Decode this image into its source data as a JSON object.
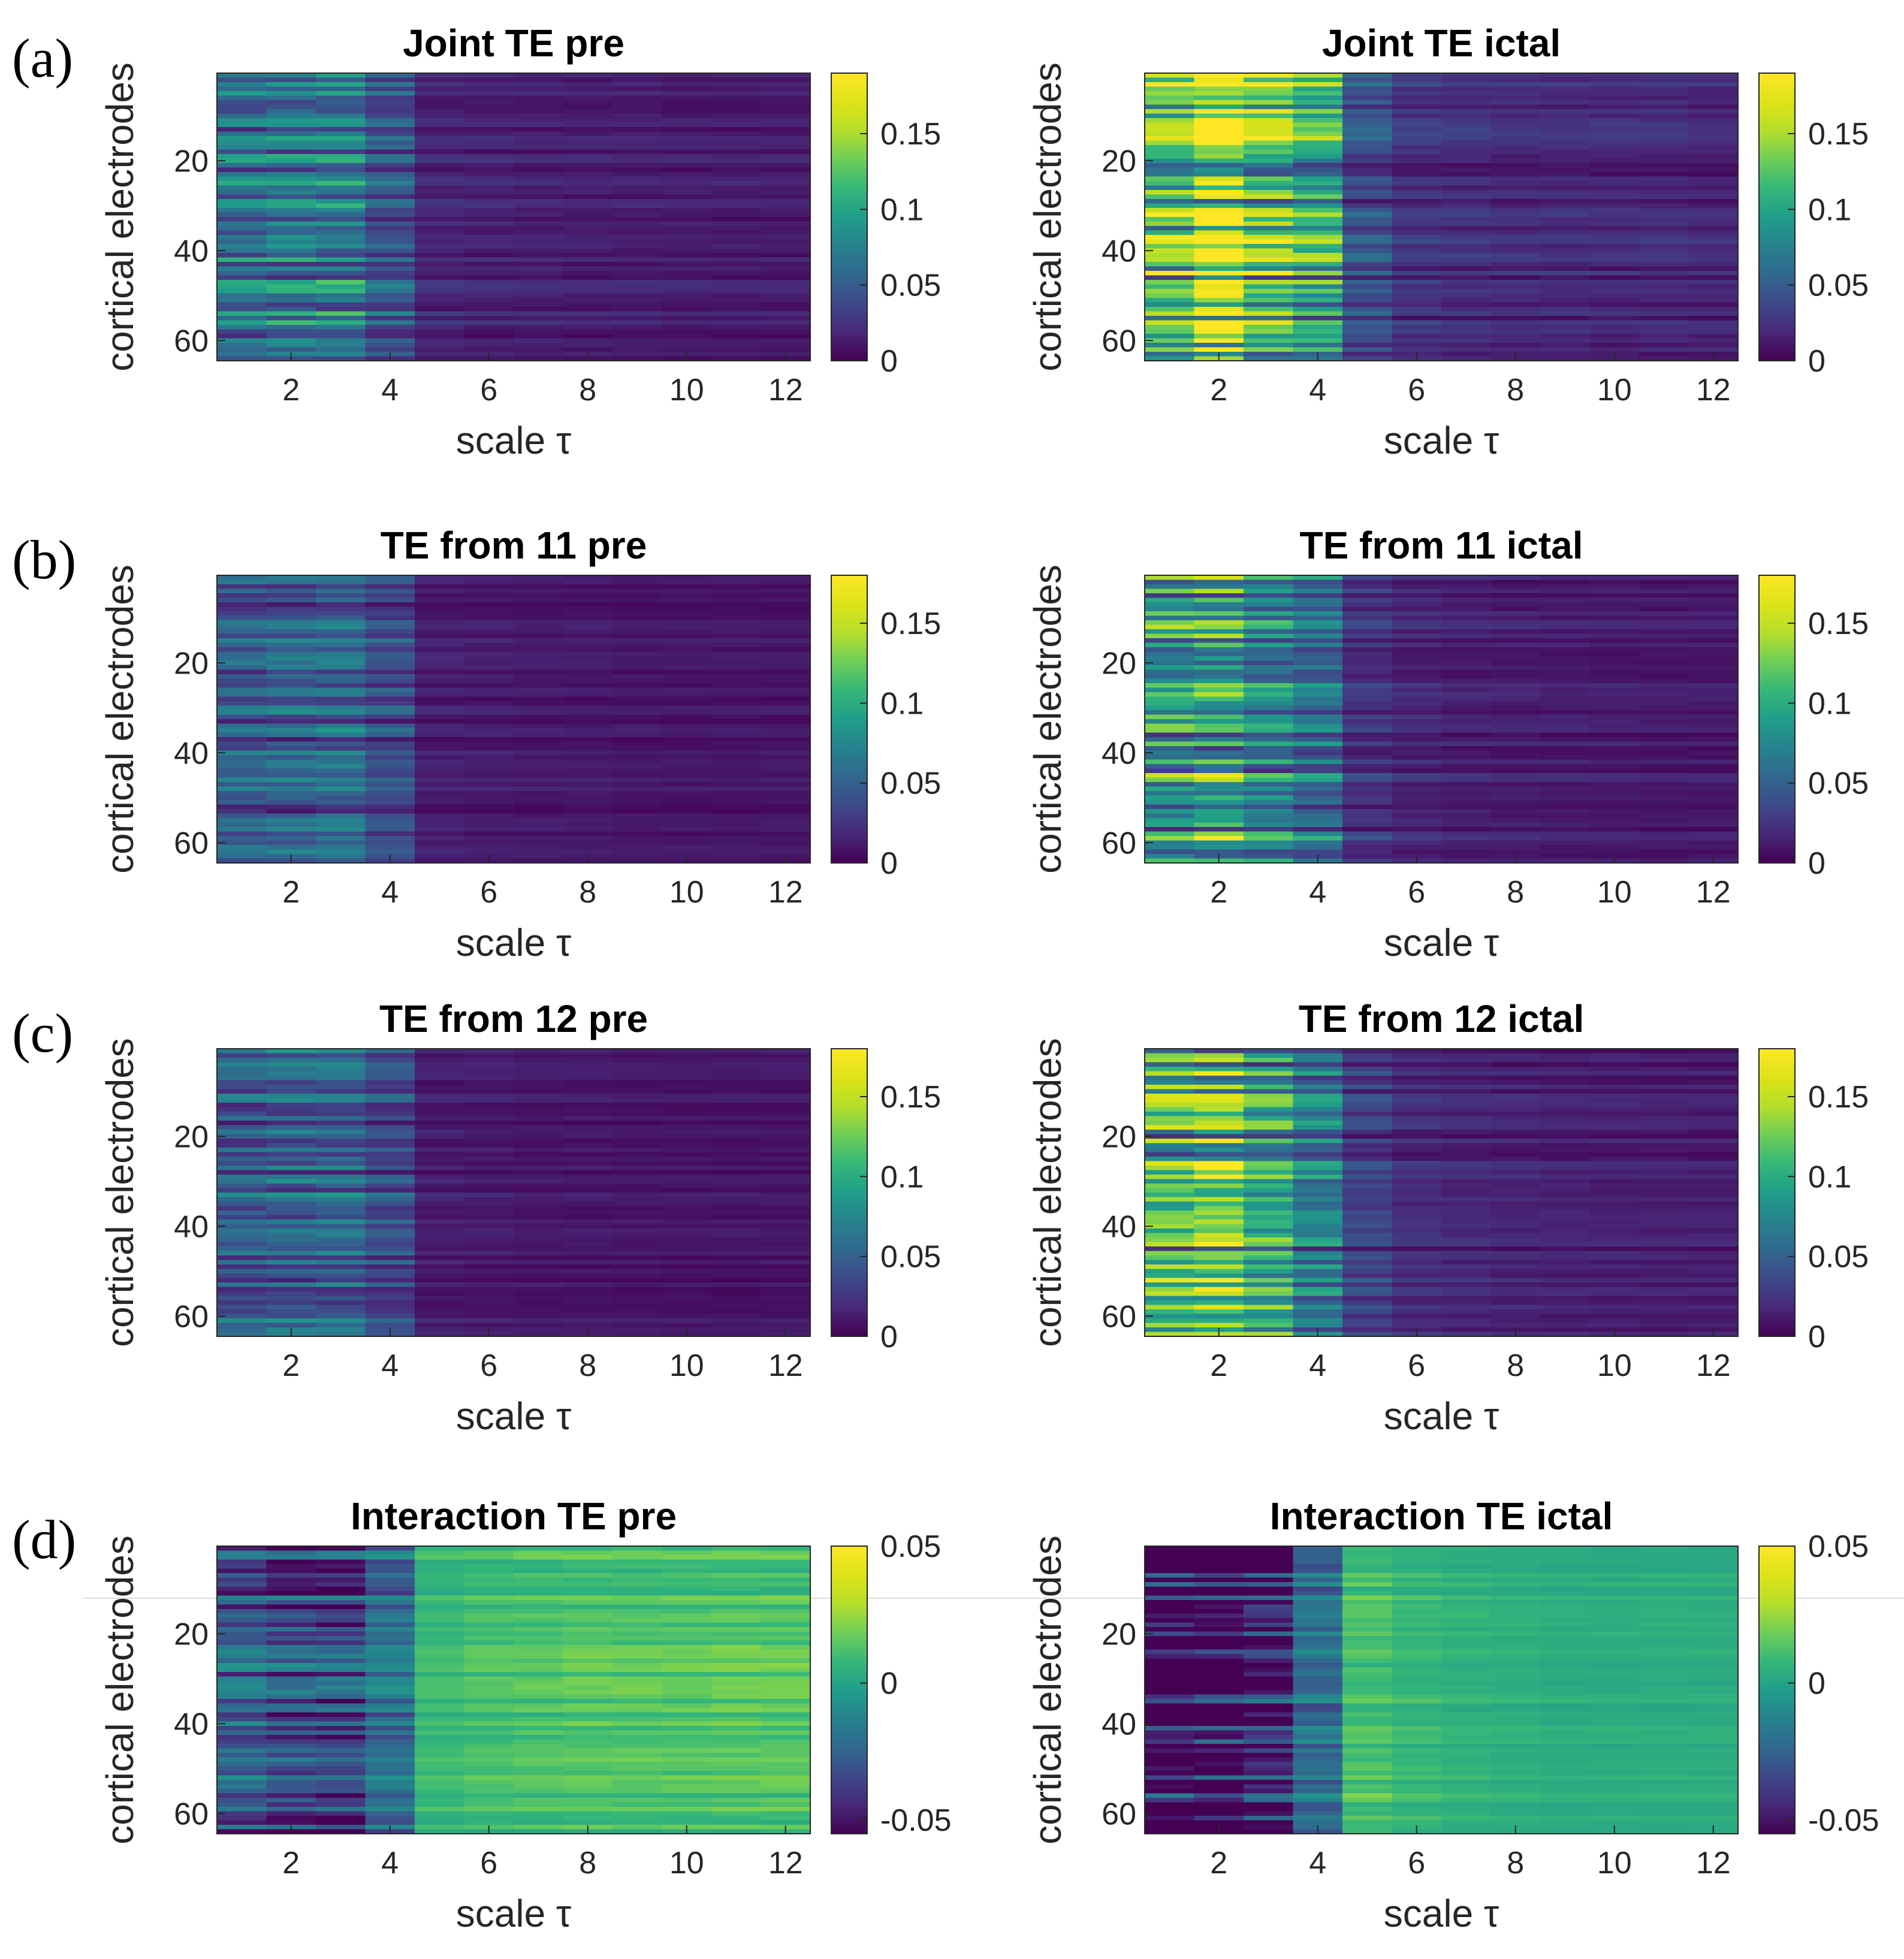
{
  "figure": {
    "row_labels": [
      "(a)",
      "(b)",
      "(c)",
      "(d)"
    ]
  },
  "chart_data": [
    {
      "type": "heatmap",
      "title": "Joint TE pre",
      "xlabel": "scale τ",
      "ylabel": "cortical electrodes",
      "x": [
        1,
        2,
        3,
        4,
        5,
        6,
        7,
        8,
        9,
        10,
        11,
        12
      ],
      "xticks": [
        "2",
        "4",
        "6",
        "8",
        "10",
        "12"
      ],
      "yticks": [
        "20",
        "40",
        "60"
      ],
      "n_electrodes": 64,
      "clim": [
        0,
        0.19
      ],
      "cbar_ticks": [
        "0",
        "0.05",
        "0.1",
        "0.15"
      ],
      "mean_by_scale": [
        0.065,
        0.068,
        0.07,
        0.045,
        0.018,
        0.016,
        0.015,
        0.014,
        0.014,
        0.013,
        0.013,
        0.013
      ]
    },
    {
      "type": "heatmap",
      "title": "Joint TE ictal",
      "xlabel": "scale τ",
      "ylabel": "cortical electrodes",
      "x": [
        1,
        2,
        3,
        4,
        5,
        6,
        7,
        8,
        9,
        10,
        11,
        12
      ],
      "xticks": [
        "2",
        "4",
        "6",
        "8",
        "10",
        "12"
      ],
      "yticks": [
        "20",
        "40",
        "60"
      ],
      "n_electrodes": 64,
      "clim": [
        0,
        0.19
      ],
      "cbar_ticks": [
        "0",
        "0.05",
        "0.1",
        "0.15"
      ],
      "mean_by_scale": [
        0.12,
        0.16,
        0.12,
        0.1,
        0.04,
        0.025,
        0.022,
        0.02,
        0.02,
        0.019,
        0.019,
        0.018
      ]
    },
    {
      "type": "heatmap",
      "title": "TE from 11 pre",
      "xlabel": "scale τ",
      "ylabel": "cortical electrodes",
      "x": [
        1,
        2,
        3,
        4,
        5,
        6,
        7,
        8,
        9,
        10,
        11,
        12
      ],
      "xticks": [
        "2",
        "4",
        "6",
        "8",
        "10",
        "12"
      ],
      "yticks": [
        "20",
        "40",
        "60"
      ],
      "n_electrodes": 64,
      "clim": [
        0,
        0.18
      ],
      "cbar_ticks": [
        "0",
        "0.05",
        "0.1",
        "0.15"
      ],
      "mean_by_scale": [
        0.045,
        0.048,
        0.05,
        0.035,
        0.012,
        0.011,
        0.01,
        0.01,
        0.009,
        0.009,
        0.009,
        0.009
      ]
    },
    {
      "type": "heatmap",
      "title": "TE from 11 ictal",
      "xlabel": "scale τ",
      "ylabel": "cortical electrodes",
      "x": [
        1,
        2,
        3,
        4,
        5,
        6,
        7,
        8,
        9,
        10,
        11,
        12
      ],
      "xticks": [
        "2",
        "4",
        "6",
        "8",
        "10",
        "12"
      ],
      "yticks": [
        "20",
        "40",
        "60"
      ],
      "n_electrodes": 64,
      "clim": [
        0,
        0.18
      ],
      "cbar_ticks": [
        "0",
        "0.05",
        "0.1",
        "0.15"
      ],
      "mean_by_scale": [
        0.09,
        0.1,
        0.08,
        0.06,
        0.025,
        0.018,
        0.015,
        0.014,
        0.013,
        0.013,
        0.012,
        0.012
      ]
    },
    {
      "type": "heatmap",
      "title": "TE from 12 pre",
      "xlabel": "scale τ",
      "ylabel": "cortical electrodes",
      "x": [
        1,
        2,
        3,
        4,
        5,
        6,
        7,
        8,
        9,
        10,
        11,
        12
      ],
      "xticks": [
        "2",
        "4",
        "6",
        "8",
        "10",
        "12"
      ],
      "yticks": [
        "20",
        "40",
        "60"
      ],
      "n_electrodes": 64,
      "clim": [
        0,
        0.18
      ],
      "cbar_ticks": [
        "0",
        "0.05",
        "0.1",
        "0.15"
      ],
      "mean_by_scale": [
        0.045,
        0.05,
        0.05,
        0.035,
        0.012,
        0.011,
        0.01,
        0.01,
        0.009,
        0.009,
        0.009,
        0.009
      ]
    },
    {
      "type": "heatmap",
      "title": "TE from 12 ictal",
      "xlabel": "scale τ",
      "ylabel": "cortical electrodes",
      "x": [
        1,
        2,
        3,
        4,
        5,
        6,
        7,
        8,
        9,
        10,
        11,
        12
      ],
      "xticks": [
        "2",
        "4",
        "6",
        "8",
        "10",
        "12"
      ],
      "yticks": [
        "20",
        "40",
        "60"
      ],
      "n_electrodes": 64,
      "clim": [
        0,
        0.18
      ],
      "cbar_ticks": [
        "0",
        "0.05",
        "0.1",
        "0.15"
      ],
      "mean_by_scale": [
        0.1,
        0.11,
        0.085,
        0.06,
        0.028,
        0.018,
        0.016,
        0.014,
        0.013,
        0.013,
        0.012,
        0.012
      ]
    },
    {
      "type": "heatmap",
      "title": "Interaction TE pre",
      "xlabel": "scale τ",
      "ylabel": "cortical electrodes",
      "x": [
        1,
        2,
        3,
        4,
        5,
        6,
        7,
        8,
        9,
        10,
        11,
        12
      ],
      "xticks": [
        "2",
        "4",
        "6",
        "8",
        "10",
        "12"
      ],
      "yticks": [
        "20",
        "40",
        "60"
      ],
      "n_electrodes": 64,
      "clim": [
        -0.055,
        0.05
      ],
      "cbar_ticks": [
        "-0.05",
        "0",
        "0.05"
      ],
      "mean_by_scale": [
        -0.03,
        -0.035,
        -0.038,
        -0.022,
        0.008,
        0.01,
        0.011,
        0.012,
        0.012,
        0.012,
        0.013,
        0.013
      ]
    },
    {
      "type": "heatmap",
      "title": "Interaction TE ictal",
      "xlabel": "scale τ",
      "ylabel": "cortical electrodes",
      "x": [
        1,
        2,
        3,
        4,
        5,
        6,
        7,
        8,
        9,
        10,
        11,
        12
      ],
      "xticks": [
        "2",
        "4",
        "6",
        "8",
        "10",
        "12"
      ],
      "yticks": [
        "20",
        "40",
        "60"
      ],
      "n_electrodes": 64,
      "clim": [
        -0.055,
        0.05
      ],
      "cbar_ticks": [
        "-0.05",
        "0",
        "0.05"
      ],
      "mean_by_scale": [
        -0.06,
        -0.06,
        -0.045,
        -0.02,
        0.012,
        0.008,
        0.006,
        0.005,
        0.004,
        0.004,
        0.004,
        0.004
      ]
    }
  ]
}
